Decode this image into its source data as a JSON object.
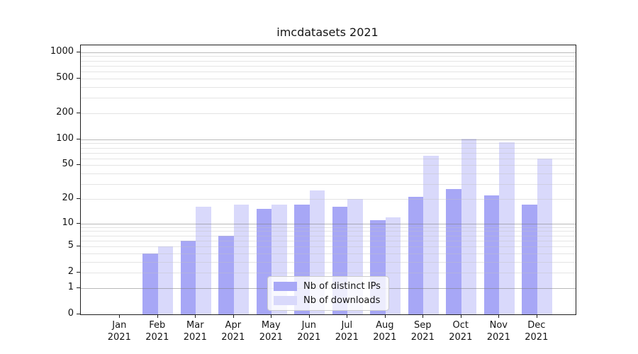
{
  "title": "imcdatasets 2021",
  "chart_data": {
    "type": "bar",
    "title": "imcdatasets 2021",
    "xlabel": "",
    "ylabel": "",
    "y_scale": "log10(1+y) symlog-like",
    "ylim": [
      0,
      1200
    ],
    "y_ticks": [
      0,
      1,
      2,
      5,
      10,
      20,
      50,
      100,
      200,
      500,
      1000
    ],
    "grid": true,
    "legend_position": "lower center",
    "categories": [
      "Jan 2021",
      "Feb 2021",
      "Mar 2021",
      "Apr 2021",
      "May 2021",
      "Jun 2021",
      "Jul 2021",
      "Aug 2021",
      "Sep 2021",
      "Oct 2021",
      "Nov 2021",
      "Dec 2021"
    ],
    "month_labels": [
      "Jan",
      "Feb",
      "Mar",
      "Apr",
      "May",
      "Jun",
      "Jul",
      "Aug",
      "Sep",
      "Oct",
      "Nov",
      "Dec"
    ],
    "year_label": "2021",
    "series": [
      {
        "name": "Nb of distinct IPs",
        "color": "#a7a7f6",
        "values": [
          0,
          4,
          6,
          7,
          15,
          17,
          16,
          11,
          21,
          26,
          22,
          17
        ]
      },
      {
        "name": "Nb of downloads",
        "color": "#d9d9fb",
        "values": [
          0,
          5,
          16,
          17,
          17,
          25,
          20,
          12,
          64,
          102,
          93,
          60
        ]
      }
    ]
  },
  "colors": {
    "major_grid": "rgba(128,128,128,0.55)",
    "minor_grid": "rgba(190,190,190,0.42)",
    "axis": "#1f1f1f",
    "text": "#141414"
  }
}
